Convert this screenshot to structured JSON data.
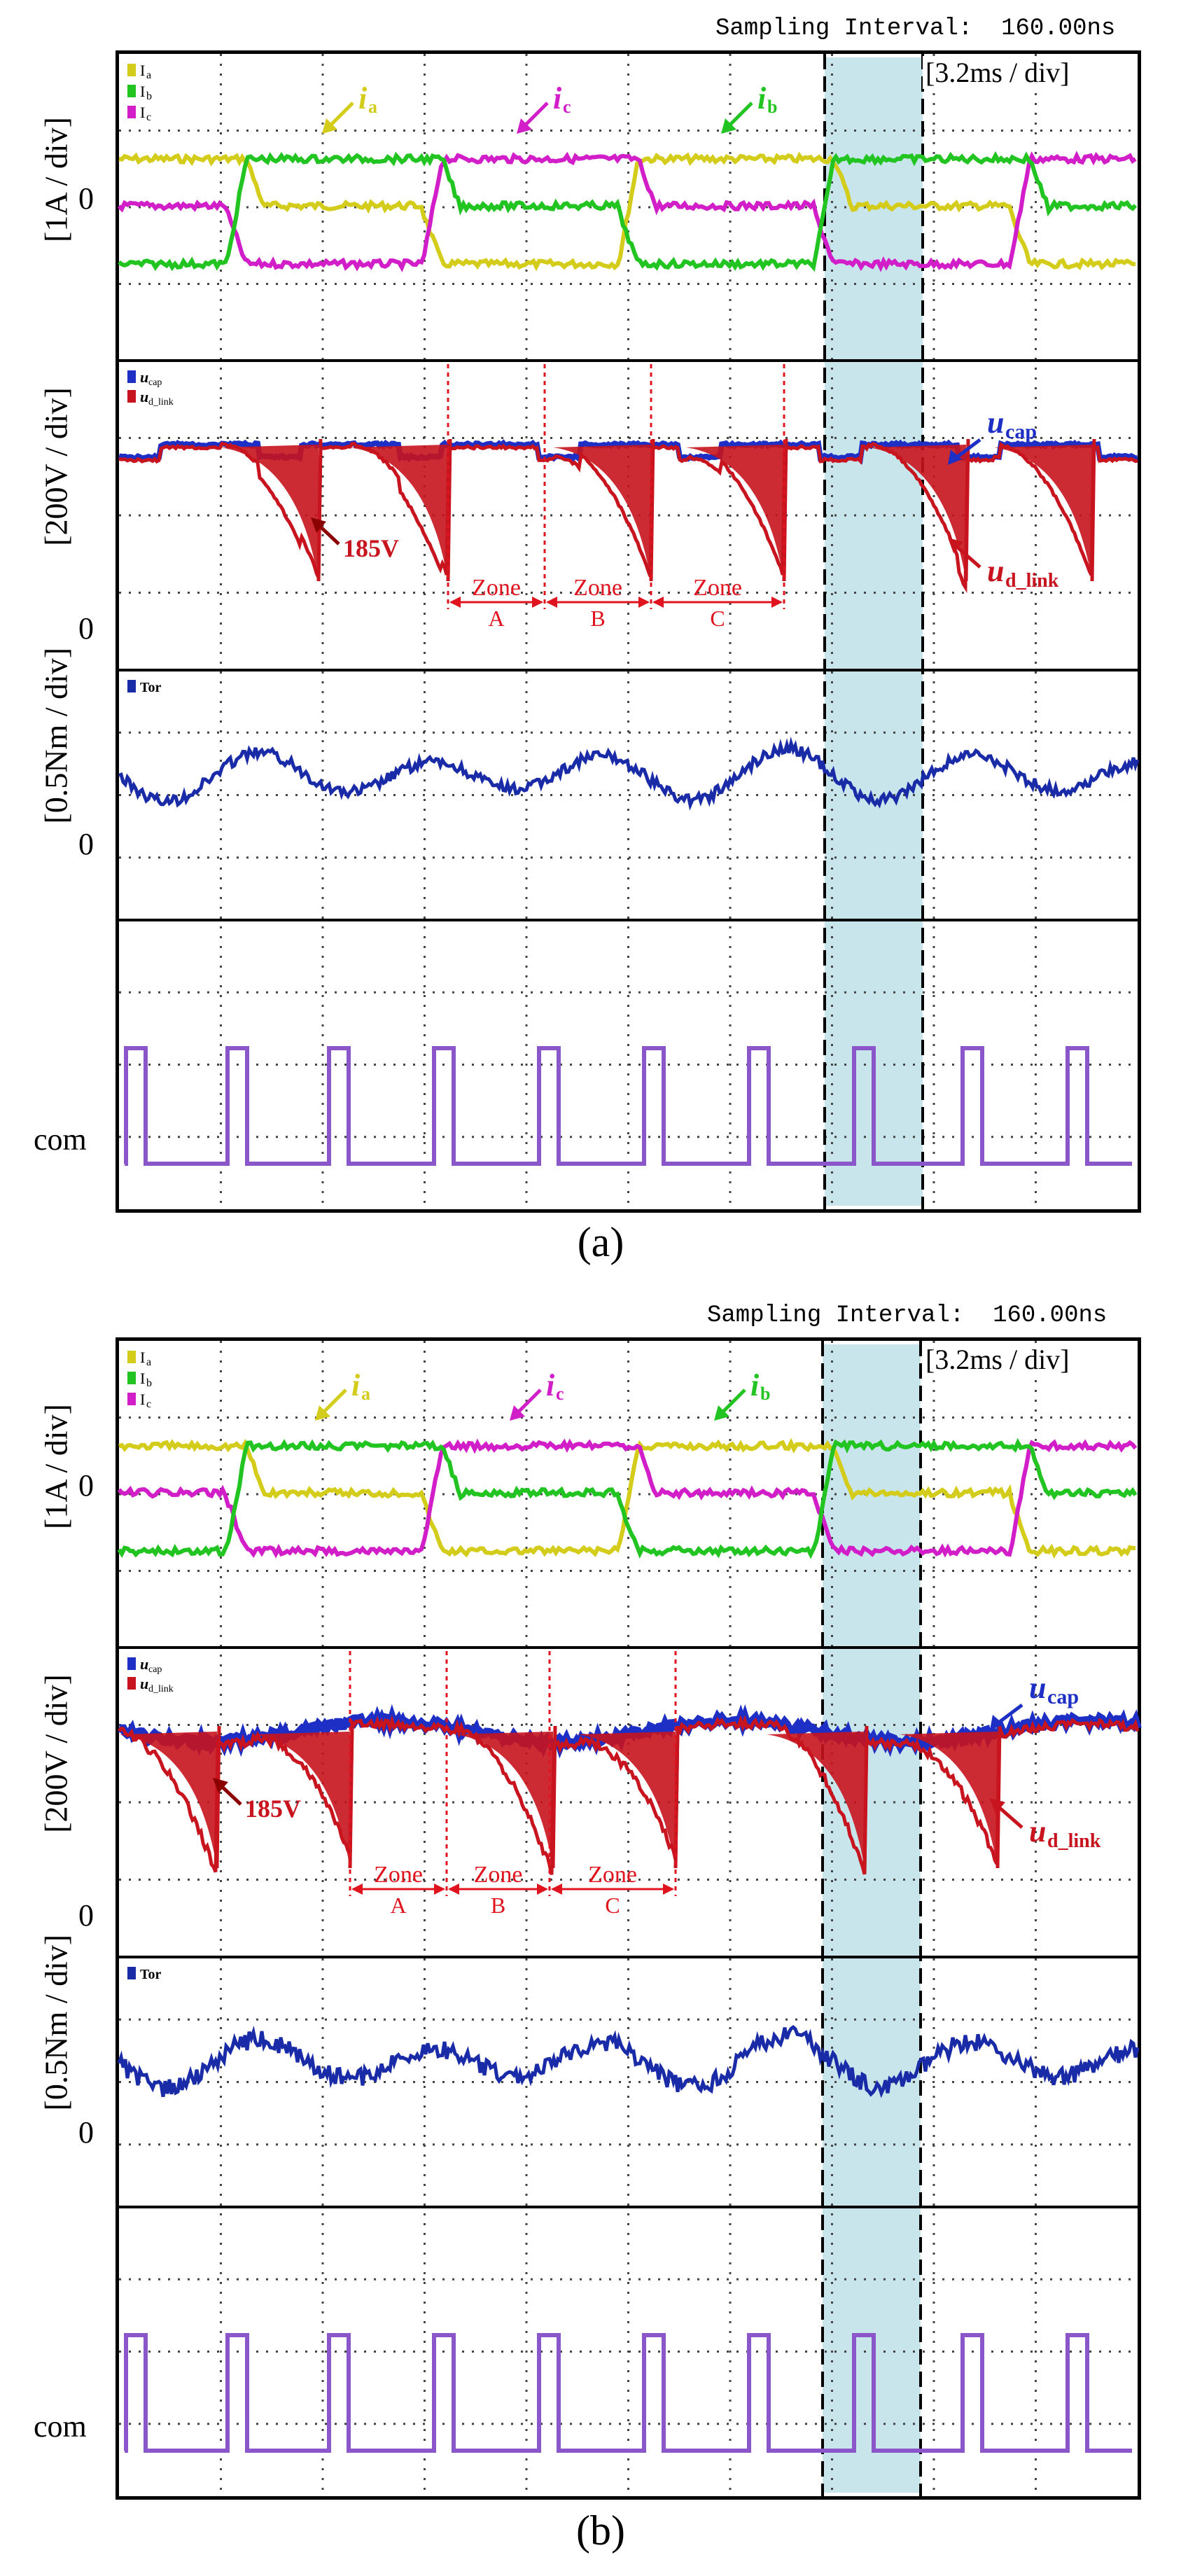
{
  "chart_data": [
    {
      "type": "line",
      "panel": "a",
      "caption": "(a)",
      "sampling_interval": "Sampling Interval:  160.00ns",
      "time_div": "[3.2ms / div]",
      "subplots": [
        {
          "ylabel": "[1A / div]",
          "zero": "0",
          "legend": [
            "Ia",
            "Ib",
            "Ic"
          ],
          "series": [
            {
              "name": "Ia",
              "label": "ia",
              "color": "#d4cc1a"
            },
            {
              "name": "Ib",
              "label": "ib",
              "color": "#22c422"
            },
            {
              "name": "Ic",
              "label": "ic",
              "color": "#d21ec8"
            }
          ]
        },
        {
          "ylabel": "[200V / div]",
          "zero": "0",
          "legend": [
            "ucap",
            "ud_link"
          ],
          "series": [
            {
              "name": "ucap",
              "label": "ucap",
              "color": "#1d2fc4"
            },
            {
              "name": "ud_link",
              "label": "ud_link",
              "color": "#c8141e"
            }
          ],
          "annotations": [
            "185V",
            "Zone A",
            "Zone B",
            "Zone C"
          ]
        },
        {
          "ylabel": "[0.5Nm / div]",
          "zero": "0",
          "legend": [
            "Tor"
          ],
          "series": [
            {
              "name": "Tor",
              "color": "#1a2ba8"
            }
          ]
        },
        {
          "ylabel": "com",
          "legend": [],
          "series": [
            {
              "name": "com",
              "color": "#8a56c9"
            }
          ]
        }
      ]
    },
    {
      "type": "line",
      "panel": "b",
      "caption": "(b)",
      "sampling_interval": "Sampling Interval:  160.00ns",
      "time_div": "[3.2ms / div]",
      "subplots": [
        {
          "ylabel": "[1A / div]",
          "zero": "0",
          "legend": [
            "Ia",
            "Ib",
            "Ic"
          ],
          "series": [
            {
              "name": "Ia",
              "label": "ia",
              "color": "#d4cc1a"
            },
            {
              "name": "Ib",
              "label": "ib",
              "color": "#22c422"
            },
            {
              "name": "Ic",
              "label": "ic",
              "color": "#d21ec8"
            }
          ]
        },
        {
          "ylabel": "[200V / div]",
          "zero": "0",
          "legend": [
            "ucap",
            "ud_link"
          ],
          "series": [
            {
              "name": "ucap",
              "label": "ucap",
              "color": "#1d2fc4"
            },
            {
              "name": "ud_link",
              "label": "ud_link",
              "color": "#c8141e"
            }
          ],
          "annotations": [
            "185V",
            "Zone A",
            "Zone B",
            "Zone C"
          ]
        },
        {
          "ylabel": "[0.5Nm / div]",
          "zero": "0",
          "legend": [
            "Tor"
          ],
          "series": [
            {
              "name": "Tor",
              "color": "#1a2ba8"
            }
          ]
        },
        {
          "ylabel": "com",
          "legend": [],
          "series": [
            {
              "name": "com",
              "color": "#8a56c9"
            }
          ]
        }
      ]
    }
  ],
  "text": {
    "zone": "Zone",
    "A": "A",
    "B": "B",
    "C": "C",
    "v185": "185V"
  }
}
